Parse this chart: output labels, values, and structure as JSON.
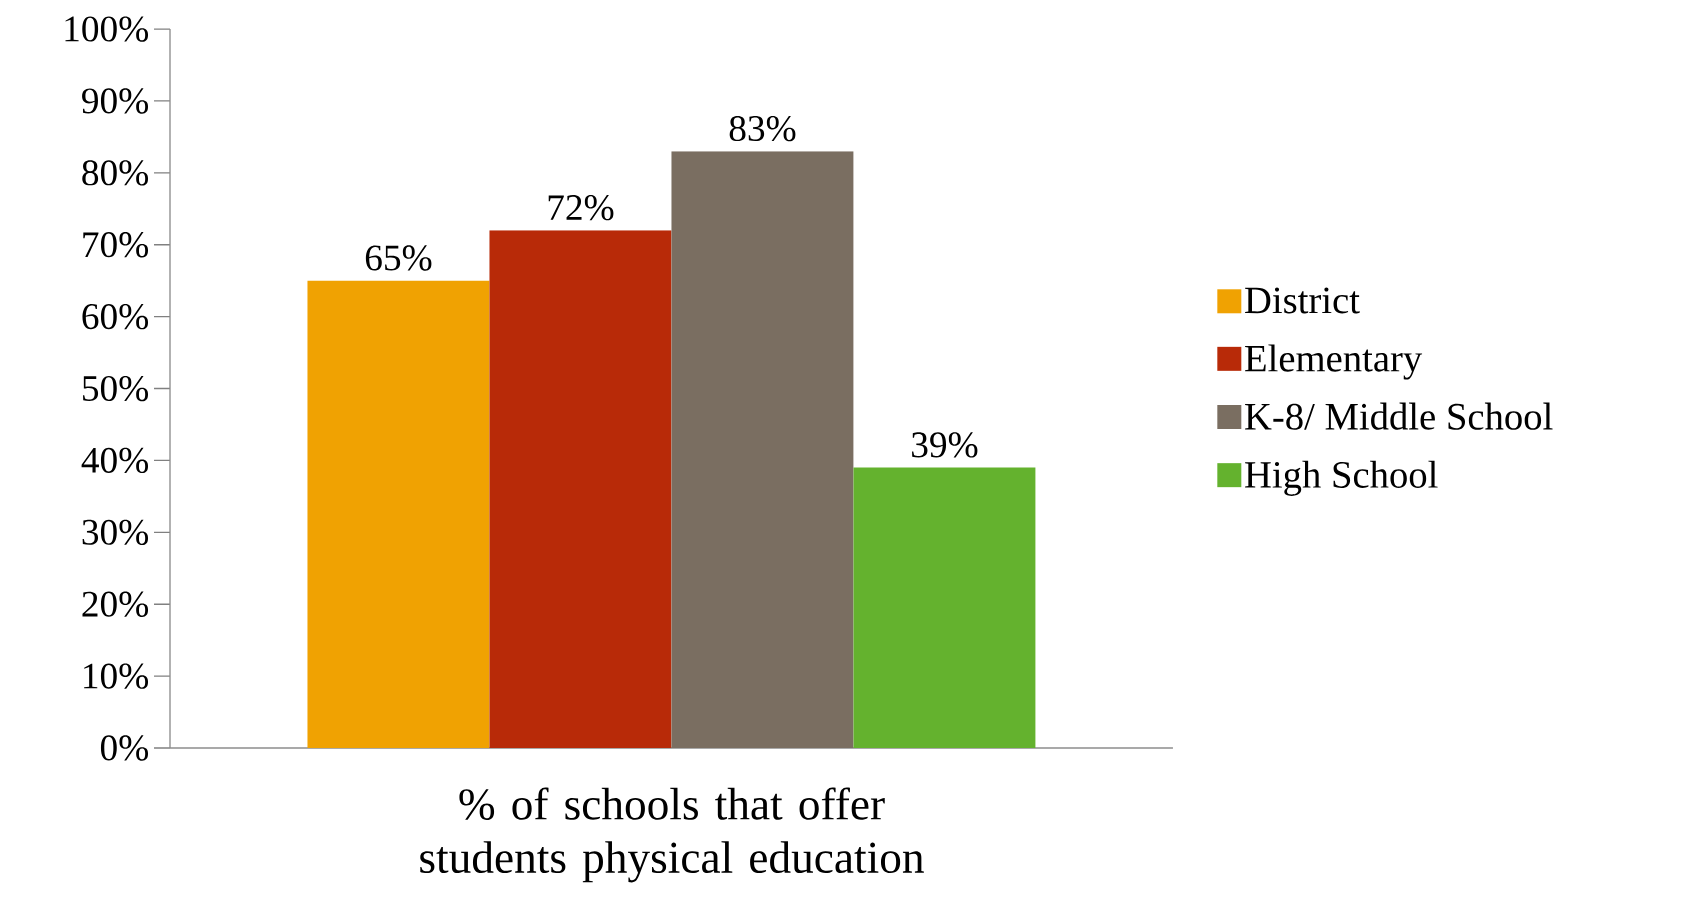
{
  "chart_data": {
    "type": "bar",
    "categories": [
      "% of schools that offer students physical education"
    ],
    "series": [
      {
        "name": "District",
        "color": "#f0a202",
        "values": [
          65
        ],
        "value_labels": [
          "65%"
        ]
      },
      {
        "name": "Elementary",
        "color": "#b82a08",
        "values": [
          72
        ],
        "value_labels": [
          "72%"
        ]
      },
      {
        "name": "K-8/ Middle School",
        "color": "#7a6e61",
        "values": [
          83
        ],
        "value_labels": [
          "83%"
        ]
      },
      {
        "name": "High School",
        "color": "#64b22e",
        "values": [
          39
        ],
        "value_labels": [
          "39%"
        ]
      }
    ],
    "ylim": [
      0,
      100
    ],
    "yticks": [
      {
        "value": 0,
        "label": "0%"
      },
      {
        "value": 10,
        "label": "10%"
      },
      {
        "value": 20,
        "label": "20%"
      },
      {
        "value": 30,
        "label": "30%"
      },
      {
        "value": 40,
        "label": "40%"
      },
      {
        "value": 50,
        "label": "50%"
      },
      {
        "value": 60,
        "label": "60%"
      },
      {
        "value": 70,
        "label": "70%"
      },
      {
        "value": 80,
        "label": "80%"
      },
      {
        "value": 90,
        "label": "90%"
      },
      {
        "value": 100,
        "label": "100%"
      }
    ],
    "grid": false,
    "legend": "right"
  }
}
